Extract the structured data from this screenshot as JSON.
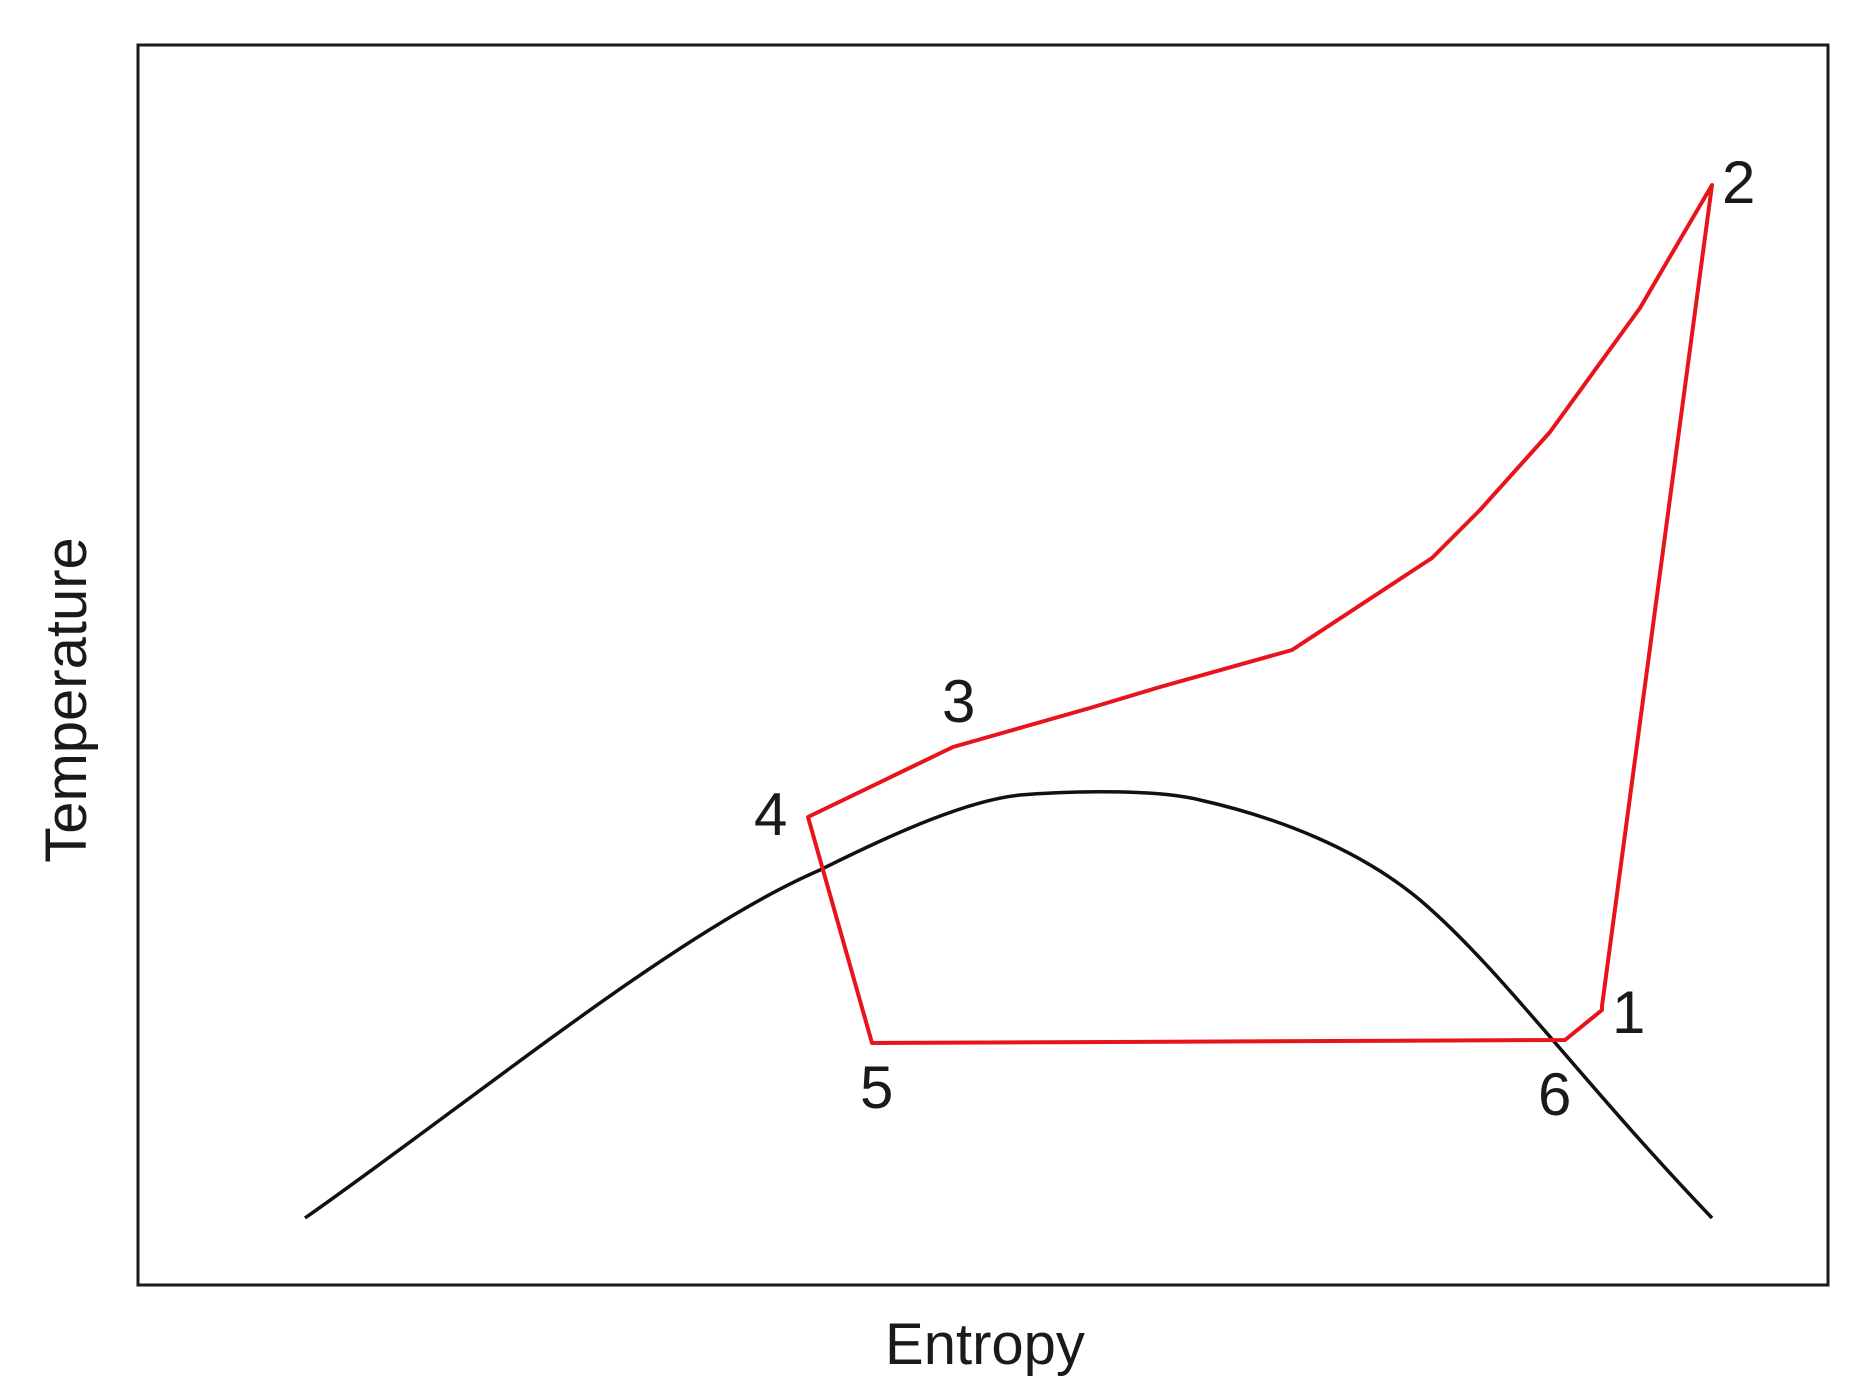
{
  "diagram": {
    "xlabel": "Entropy",
    "ylabel": "Temperature",
    "colors": {
      "frame": "#1a1a1a",
      "saturation_curve": "#111111",
      "cycle": "#e8141c"
    },
    "state_points": [
      {
        "label": "1"
      },
      {
        "label": "2"
      },
      {
        "label": "3"
      },
      {
        "label": "4"
      },
      {
        "label": "5"
      },
      {
        "label": "6"
      }
    ]
  }
}
